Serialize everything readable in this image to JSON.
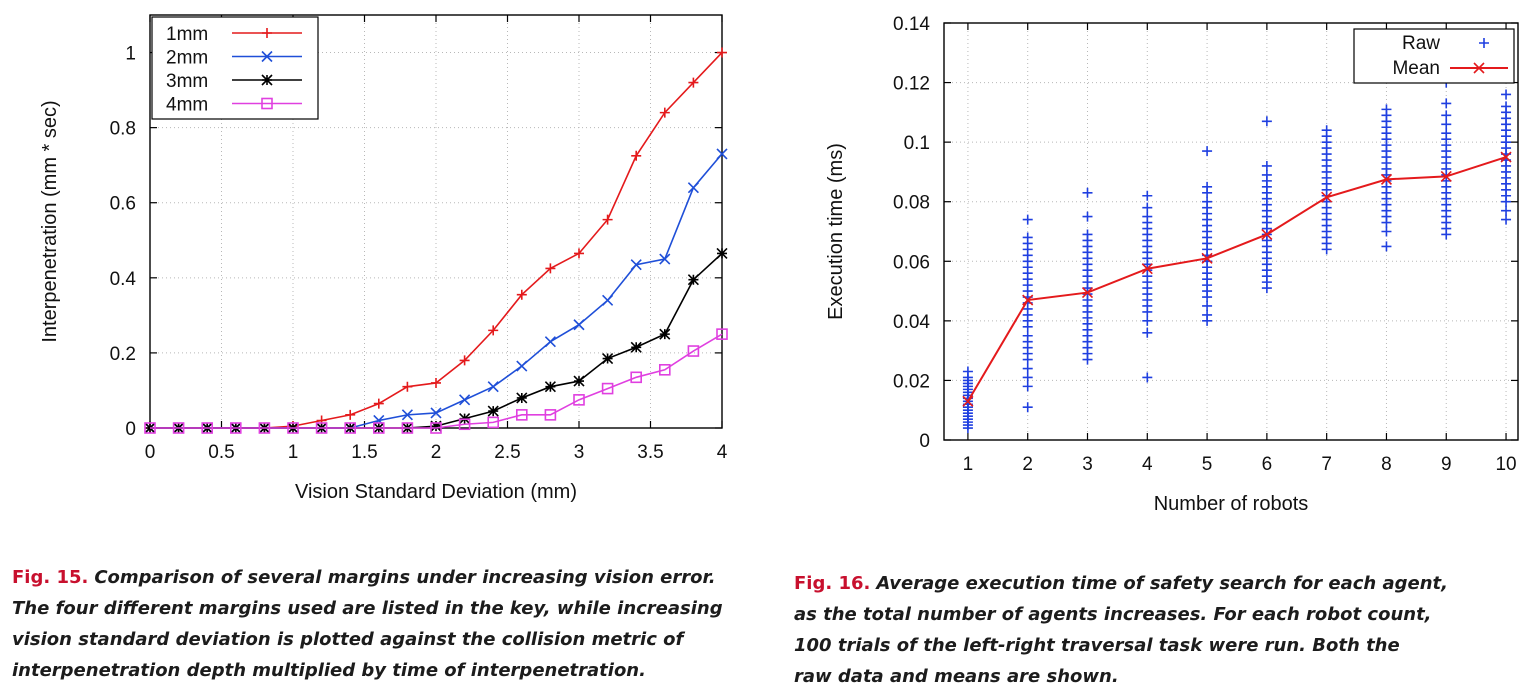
{
  "chart_data": [
    {
      "type": "line",
      "figure": "fig15",
      "xlabel": "Vision Standard Deviation (mm)",
      "ylabel": "Interpenetration (mm * sec)",
      "xlim": [
        0,
        4
      ],
      "ylim": [
        0,
        1.1
      ],
      "xticks": [
        "0",
        "0.5",
        "1",
        "1.5",
        "2",
        "2.5",
        "3",
        "3.5",
        "4"
      ],
      "xtick_values": [
        0,
        0.5,
        1,
        1.5,
        2,
        2.5,
        3,
        3.5,
        4
      ],
      "yticks": [
        "0",
        "0.2",
        "0.4",
        "0.6",
        "0.8",
        "1"
      ],
      "ytick_values": [
        0,
        0.2,
        0.4,
        0.6,
        0.8,
        1
      ],
      "grid": true,
      "legend_position": "top-left",
      "x": [
        0,
        0.2,
        0.4,
        0.6,
        0.8,
        1.0,
        1.2,
        1.4,
        1.6,
        1.8,
        2.0,
        2.2,
        2.4,
        2.6,
        2.8,
        3.0,
        3.2,
        3.4,
        3.6,
        3.8,
        4.0
      ],
      "series": [
        {
          "name": "1mm",
          "color": "#e41a1c",
          "marker": "plus",
          "values": [
            0,
            0,
            0,
            0,
            0,
            0.005,
            0.02,
            0.035,
            0.065,
            0.11,
            0.12,
            0.18,
            0.26,
            0.355,
            0.425,
            0.465,
            0.555,
            0.725,
            0.84,
            0.92,
            1.0
          ]
        },
        {
          "name": "2mm",
          "color": "#1f4fd8",
          "marker": "cross",
          "values": [
            0,
            0,
            0,
            0,
            0,
            0,
            0,
            0,
            0.02,
            0.035,
            0.04,
            0.075,
            0.11,
            0.165,
            0.23,
            0.275,
            0.34,
            0.435,
            0.45,
            0.64,
            0.73
          ]
        },
        {
          "name": "3mm",
          "color": "#000000",
          "marker": "star",
          "values": [
            0,
            0,
            0,
            0,
            0,
            0,
            0,
            0,
            0,
            0,
            0.005,
            0.025,
            0.045,
            0.08,
            0.11,
            0.125,
            0.185,
            0.215,
            0.25,
            0.395,
            0.465
          ]
        },
        {
          "name": "4mm",
          "color": "#e040e0",
          "marker": "square",
          "values": [
            0,
            0,
            0,
            0,
            0,
            0,
            0,
            0,
            0,
            0,
            0,
            0.01,
            0.015,
            0.035,
            0.035,
            0.075,
            0.105,
            0.135,
            0.155,
            0.205,
            0.25
          ]
        }
      ]
    },
    {
      "type": "scatter",
      "figure": "fig16",
      "xlabel": "Number of robots",
      "ylabel": "Execution time (ms)",
      "xlim": [
        0.6,
        10.2
      ],
      "ylim": [
        0,
        0.14
      ],
      "xticks": [
        "1",
        "2",
        "3",
        "4",
        "5",
        "6",
        "7",
        "8",
        "9",
        "10"
      ],
      "xtick_values": [
        1,
        2,
        3,
        4,
        5,
        6,
        7,
        8,
        9,
        10
      ],
      "yticks": [
        "0",
        "0.02",
        "0.04",
        "0.06",
        "0.08",
        "0.1",
        "0.12",
        "0.14"
      ],
      "ytick_values": [
        0,
        0.02,
        0.04,
        0.06,
        0.08,
        0.1,
        0.12,
        0.14
      ],
      "grid": true,
      "legend_position": "top-right",
      "series": [
        {
          "name": "Raw",
          "color": "#1f3fe0",
          "marker": "plus",
          "style": "points",
          "groups": [
            {
              "x": 1,
              "values": [
                0.004,
                0.005,
                0.006,
                0.007,
                0.008,
                0.009,
                0.01,
                0.011,
                0.012,
                0.013,
                0.014,
                0.015,
                0.016,
                0.017,
                0.018,
                0.019,
                0.02,
                0.021,
                0.023
              ]
            },
            {
              "x": 2,
              "values": [
                0.011,
                0.018,
                0.021,
                0.024,
                0.027,
                0.029,
                0.031,
                0.033,
                0.035,
                0.038,
                0.04,
                0.042,
                0.044,
                0.046,
                0.048,
                0.05,
                0.052,
                0.054,
                0.056,
                0.058,
                0.06,
                0.062,
                0.064,
                0.066,
                0.068,
                0.074
              ]
            },
            {
              "x": 3,
              "values": [
                0.027,
                0.029,
                0.031,
                0.033,
                0.035,
                0.037,
                0.039,
                0.041,
                0.043,
                0.045,
                0.047,
                0.049,
                0.051,
                0.053,
                0.055,
                0.057,
                0.059,
                0.061,
                0.063,
                0.065,
                0.067,
                0.069,
                0.075,
                0.083
              ]
            },
            {
              "x": 4,
              "values": [
                0.021,
                0.036,
                0.04,
                0.043,
                0.045,
                0.047,
                0.049,
                0.051,
                0.053,
                0.055,
                0.057,
                0.059,
                0.061,
                0.063,
                0.065,
                0.067,
                0.069,
                0.071,
                0.073,
                0.075,
                0.078,
                0.082
              ]
            },
            {
              "x": 5,
              "values": [
                0.04,
                0.042,
                0.045,
                0.048,
                0.05,
                0.052,
                0.054,
                0.056,
                0.058,
                0.06,
                0.062,
                0.064,
                0.066,
                0.068,
                0.07,
                0.072,
                0.074,
                0.076,
                0.078,
                0.08,
                0.083,
                0.085,
                0.097
              ]
            },
            {
              "x": 6,
              "values": [
                0.051,
                0.053,
                0.055,
                0.057,
                0.059,
                0.061,
                0.063,
                0.065,
                0.067,
                0.069,
                0.071,
                0.073,
                0.075,
                0.077,
                0.079,
                0.081,
                0.083,
                0.085,
                0.087,
                0.089,
                0.092,
                0.107
              ]
            },
            {
              "x": 7,
              "values": [
                0.064,
                0.066,
                0.068,
                0.07,
                0.072,
                0.074,
                0.076,
                0.078,
                0.08,
                0.082,
                0.084,
                0.086,
                0.088,
                0.09,
                0.092,
                0.094,
                0.096,
                0.098,
                0.1,
                0.102,
                0.104
              ]
            },
            {
              "x": 8,
              "values": [
                0.065,
                0.07,
                0.073,
                0.075,
                0.077,
                0.079,
                0.081,
                0.083,
                0.085,
                0.087,
                0.089,
                0.091,
                0.093,
                0.095,
                0.097,
                0.099,
                0.101,
                0.103,
                0.105,
                0.107,
                0.109,
                0.111
              ]
            },
            {
              "x": 9,
              "values": [
                0.069,
                0.071,
                0.073,
                0.075,
                0.077,
                0.079,
                0.081,
                0.083,
                0.085,
                0.087,
                0.089,
                0.091,
                0.093,
                0.095,
                0.097,
                0.099,
                0.101,
                0.103,
                0.106,
                0.109,
                0.113,
                0.12,
                0.124
              ]
            },
            {
              "x": 10,
              "values": [
                0.074,
                0.077,
                0.08,
                0.082,
                0.084,
                0.086,
                0.088,
                0.09,
                0.092,
                0.094,
                0.096,
                0.098,
                0.1,
                0.102,
                0.104,
                0.106,
                0.108,
                0.11,
                0.112,
                0.116
              ]
            }
          ]
        },
        {
          "name": "Mean",
          "color": "#e41a1c",
          "marker": "cross",
          "style": "line",
          "x": [
            1,
            2,
            3,
            4,
            5,
            6,
            7,
            8,
            9,
            10
          ],
          "values": [
            0.013,
            0.047,
            0.0495,
            0.0575,
            0.061,
            0.069,
            0.0815,
            0.0875,
            0.0885,
            0.095
          ]
        }
      ]
    }
  ],
  "captions": {
    "fig15": {
      "number": "Fig. 15.",
      "lines": [
        "Comparison of several margins under increasing vision error.",
        "The four different margins used are listed in the key, while increasing",
        "vision standard deviation is plotted against the collision metric of",
        "interpenetration depth multiplied by time of interpenetration."
      ]
    },
    "fig16": {
      "number": "Fig. 16.",
      "lines": [
        "Average execution time of safety search for each agent,",
        "as the total number of agents increases. For each robot count,",
        "100 trials of the left-right traversal task were run. Both the",
        "raw data and means are shown."
      ]
    }
  }
}
